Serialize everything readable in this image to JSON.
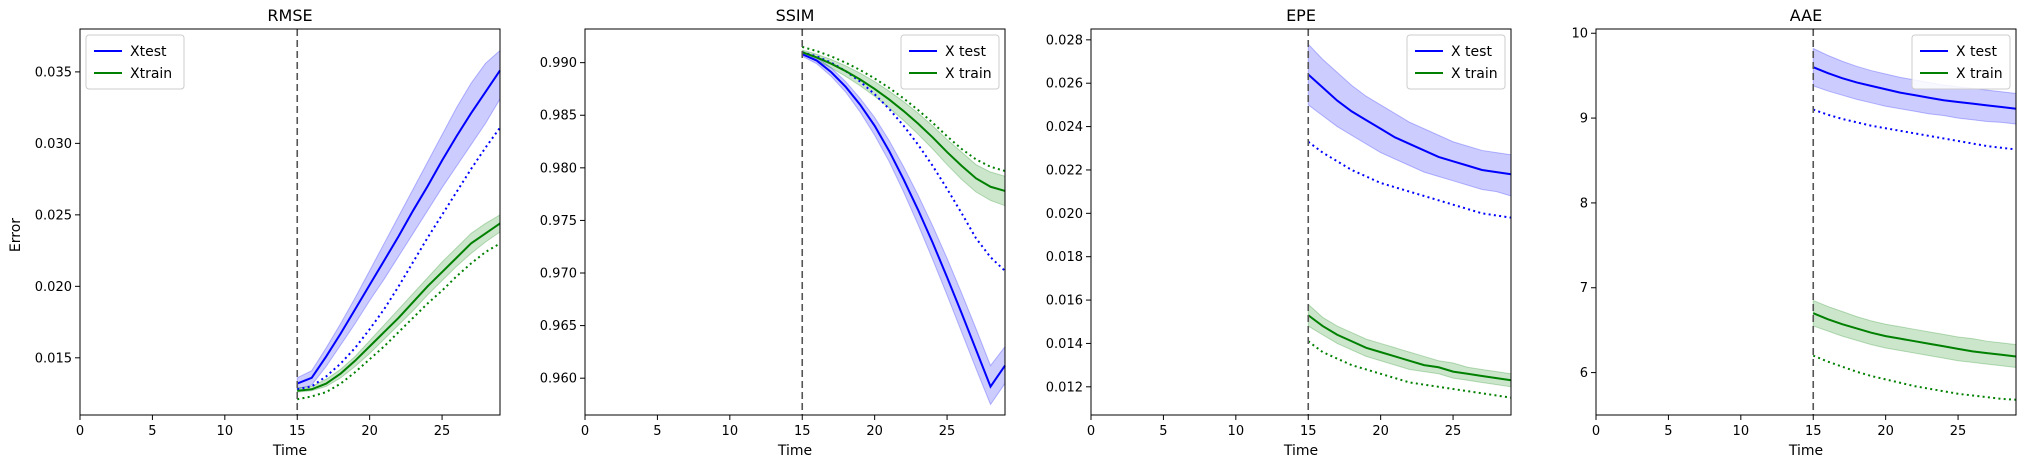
{
  "figure": {
    "ylabel": "Error"
  },
  "chart_data": [
    {
      "type": "line",
      "title": "RMSE",
      "xlabel": "Time",
      "ylabel": "Error",
      "xlim": [
        0,
        29
      ],
      "ylim": [
        0.011,
        0.038
      ],
      "xticks": [
        0,
        5,
        10,
        15,
        20,
        25
      ],
      "yticks": [
        0.015,
        0.02,
        0.025,
        0.03,
        0.035
      ],
      "ytick_labels": [
        "0.015",
        "0.020",
        "0.025",
        "0.030",
        "0.035"
      ],
      "vline": 15,
      "grid": false,
      "legend_position": "top-left",
      "x": [
        15,
        16,
        17,
        18,
        19,
        20,
        21,
        22,
        23,
        24,
        25,
        26,
        27,
        28,
        29
      ],
      "series": [
        {
          "name": "Xtest",
          "color": "#0000ff",
          "style": "solid",
          "values": [
            0.0132,
            0.0136,
            0.0151,
            0.0167,
            0.0184,
            0.0201,
            0.0218,
            0.0235,
            0.0253,
            0.027,
            0.0288,
            0.0305,
            0.0321,
            0.0336,
            0.0351
          ],
          "lower": [
            0.0128,
            0.0131,
            0.0144,
            0.0159,
            0.0174,
            0.019,
            0.0205,
            0.0221,
            0.0237,
            0.0253,
            0.0269,
            0.0284,
            0.0299,
            0.0314,
            0.0331
          ],
          "upper": [
            0.0136,
            0.0141,
            0.0157,
            0.0174,
            0.0192,
            0.0211,
            0.023,
            0.0249,
            0.0268,
            0.0287,
            0.0306,
            0.0325,
            0.0342,
            0.0356,
            0.0365
          ]
        },
        {
          "name": "",
          "color": "#0000ff",
          "style": "dotted",
          "values": [
            0.0128,
            0.013,
            0.0137,
            0.0146,
            0.0157,
            0.017,
            0.0184,
            0.02,
            0.0217,
            0.0234,
            0.025,
            0.0266,
            0.0282,
            0.0297,
            0.0311
          ]
        },
        {
          "name": "Xtrain",
          "color": "#008000",
          "style": "solid",
          "values": [
            0.0127,
            0.0128,
            0.0132,
            0.0139,
            0.0148,
            0.0158,
            0.0168,
            0.0178,
            0.0189,
            0.02,
            0.021,
            0.022,
            0.023,
            0.0237,
            0.0244
          ],
          "lower": [
            0.0126,
            0.0127,
            0.013,
            0.0136,
            0.0144,
            0.0153,
            0.0163,
            0.0173,
            0.0183,
            0.0194,
            0.0204,
            0.0214,
            0.0223,
            0.0231,
            0.0238
          ],
          "upper": [
            0.0129,
            0.013,
            0.0135,
            0.0142,
            0.0151,
            0.0162,
            0.0173,
            0.0184,
            0.0195,
            0.0206,
            0.0217,
            0.0227,
            0.0237,
            0.0244,
            0.025
          ]
        },
        {
          "name": "",
          "color": "#008000",
          "style": "dotted",
          "values": [
            0.0121,
            0.0123,
            0.0126,
            0.0132,
            0.014,
            0.0149,
            0.0158,
            0.0168,
            0.0178,
            0.0188,
            0.0197,
            0.0207,
            0.0216,
            0.0224,
            0.023
          ]
        }
      ]
    },
    {
      "type": "line",
      "title": "SSIM",
      "xlabel": "Time",
      "ylabel": "",
      "xlim": [
        0,
        29
      ],
      "ylim": [
        0.9565,
        0.9932
      ],
      "xticks": [
        0,
        5,
        10,
        15,
        20,
        25
      ],
      "yticks": [
        0.96,
        0.965,
        0.97,
        0.975,
        0.98,
        0.985,
        0.99
      ],
      "ytick_labels": [
        "0.960",
        "0.965",
        "0.970",
        "0.975",
        "0.980",
        "0.985",
        "0.990"
      ],
      "vline": 15,
      "grid": false,
      "legend_position": "top-right",
      "x": [
        15,
        16,
        17,
        18,
        19,
        20,
        21,
        22,
        23,
        24,
        25,
        26,
        27,
        28,
        29
      ],
      "series": [
        {
          "name": "X test",
          "color": "#0000ff",
          "style": "solid",
          "values": [
            0.9908,
            0.9902,
            0.9891,
            0.9877,
            0.986,
            0.984,
            0.9816,
            0.9789,
            0.976,
            0.9729,
            0.9696,
            0.9662,
            0.9627,
            0.9592,
            0.9612
          ],
          "lower": [
            0.9906,
            0.9899,
            0.9887,
            0.9872,
            0.9853,
            0.9831,
            0.9806,
            0.9777,
            0.9746,
            0.9713,
            0.9679,
            0.9644,
            0.9609,
            0.9575,
            0.9595
          ],
          "upper": [
            0.991,
            0.9905,
            0.9895,
            0.9882,
            0.9866,
            0.9848,
            0.9826,
            0.9801,
            0.9774,
            0.9745,
            0.9714,
            0.9681,
            0.9647,
            0.9612,
            0.963
          ]
        },
        {
          "name": "",
          "color": "#0000ff",
          "style": "dotted",
          "values": [
            0.991,
            0.9906,
            0.99,
            0.9892,
            0.9882,
            0.987,
            0.9856,
            0.984,
            0.9822,
            0.9802,
            0.978,
            0.9757,
            0.9733,
            0.9715,
            0.9702
          ]
        },
        {
          "name": "X train",
          "color": "#008000",
          "style": "solid",
          "values": [
            0.991,
            0.9905,
            0.9899,
            0.9892,
            0.9884,
            0.9875,
            0.9865,
            0.9854,
            0.9842,
            0.9829,
            0.9815,
            0.9802,
            0.979,
            0.9782,
            0.9778
          ],
          "lower": [
            0.9908,
            0.9902,
            0.9895,
            0.9887,
            0.9878,
            0.9868,
            0.9857,
            0.9845,
            0.9832,
            0.9818,
            0.9803,
            0.9789,
            0.9777,
            0.9769,
            0.9764
          ],
          "upper": [
            0.9912,
            0.9908,
            0.9903,
            0.9897,
            0.989,
            0.9882,
            0.9873,
            0.9863,
            0.9852,
            0.984,
            0.9827,
            0.9815,
            0.9803,
            0.9796,
            0.9792
          ]
        },
        {
          "name": "",
          "color": "#008000",
          "style": "dotted",
          "values": [
            0.9915,
            0.9911,
            0.9906,
            0.99,
            0.9893,
            0.9885,
            0.9876,
            0.9866,
            0.9855,
            0.9843,
            0.983,
            0.9818,
            0.9808,
            0.9801,
            0.9797
          ]
        }
      ]
    },
    {
      "type": "line",
      "title": "EPE",
      "xlabel": "Time",
      "ylabel": "",
      "xlim": [
        0,
        29
      ],
      "ylim": [
        0.0107,
        0.0285
      ],
      "xticks": [
        0,
        5,
        10,
        15,
        20,
        25
      ],
      "yticks": [
        0.012,
        0.014,
        0.016,
        0.018,
        0.02,
        0.022,
        0.024,
        0.026,
        0.028
      ],
      "ytick_labels": [
        "0.012",
        "0.014",
        "0.016",
        "0.018",
        "0.020",
        "0.022",
        "0.024",
        "0.026",
        "0.028"
      ],
      "vline": 15,
      "grid": false,
      "legend_position": "top-right",
      "x": [
        15,
        16,
        17,
        18,
        19,
        20,
        21,
        22,
        23,
        24,
        25,
        26,
        27,
        28,
        29
      ],
      "series": [
        {
          "name": "X test",
          "color": "#0000ff",
          "style": "solid",
          "values": [
            0.0264,
            0.0258,
            0.0252,
            0.0247,
            0.0243,
            0.0239,
            0.0235,
            0.0232,
            0.0229,
            0.0226,
            0.0224,
            0.0222,
            0.022,
            0.0219,
            0.0218
          ],
          "lower": [
            0.025,
            0.0245,
            0.024,
            0.0236,
            0.0232,
            0.0228,
            0.0225,
            0.0222,
            0.0219,
            0.0217,
            0.0215,
            0.0213,
            0.0211,
            0.021,
            0.0208
          ],
          "upper": [
            0.0278,
            0.0271,
            0.0265,
            0.0259,
            0.0254,
            0.025,
            0.0246,
            0.0242,
            0.0239,
            0.0236,
            0.0233,
            0.0231,
            0.0229,
            0.0228,
            0.0227
          ]
        },
        {
          "name": "",
          "color": "#0000ff",
          "style": "dotted",
          "values": [
            0.0233,
            0.0228,
            0.0224,
            0.022,
            0.0217,
            0.0214,
            0.0212,
            0.021,
            0.0208,
            0.0206,
            0.0204,
            0.0202,
            0.02,
            0.0199,
            0.0198
          ]
        },
        {
          "name": "X train",
          "color": "#008000",
          "style": "solid",
          "values": [
            0.0153,
            0.0148,
            0.0144,
            0.0141,
            0.0138,
            0.0136,
            0.0134,
            0.0132,
            0.013,
            0.0129,
            0.0127,
            0.0126,
            0.0125,
            0.0124,
            0.0123
          ],
          "lower": [
            0.0148,
            0.0144,
            0.014,
            0.0137,
            0.0134,
            0.0132,
            0.013,
            0.0128,
            0.0127,
            0.0126,
            0.0124,
            0.0123,
            0.0122,
            0.0121,
            0.012
          ],
          "upper": [
            0.0158,
            0.0152,
            0.0148,
            0.0145,
            0.0142,
            0.014,
            0.0138,
            0.0136,
            0.0134,
            0.0132,
            0.0131,
            0.0129,
            0.0128,
            0.0127,
            0.0126
          ]
        },
        {
          "name": "",
          "color": "#008000",
          "style": "dotted",
          "values": [
            0.0141,
            0.0136,
            0.0133,
            0.013,
            0.0128,
            0.0126,
            0.0124,
            0.0122,
            0.0121,
            0.012,
            0.0119,
            0.0118,
            0.0117,
            0.0116,
            0.0115
          ]
        }
      ]
    },
    {
      "type": "line",
      "title": "AAE",
      "xlabel": "Time",
      "ylabel": "",
      "xlim": [
        0,
        29
      ],
      "ylim": [
        5.5,
        10.05
      ],
      "xticks": [
        0,
        5,
        10,
        15,
        20,
        25
      ],
      "yticks": [
        6,
        7,
        8,
        9,
        10
      ],
      "ytick_labels": [
        "6",
        "7",
        "8",
        "9",
        "10"
      ],
      "vline": 15,
      "grid": false,
      "legend_position": "top-right",
      "x": [
        15,
        16,
        17,
        18,
        19,
        20,
        21,
        22,
        23,
        24,
        25,
        26,
        27,
        28,
        29
      ],
      "series": [
        {
          "name": "X test",
          "color": "#0000ff",
          "style": "solid",
          "values": [
            9.6,
            9.53,
            9.47,
            9.42,
            9.38,
            9.34,
            9.3,
            9.27,
            9.24,
            9.21,
            9.19,
            9.17,
            9.15,
            9.13,
            9.11
          ],
          "lower": [
            9.38,
            9.32,
            9.27,
            9.22,
            9.18,
            9.14,
            9.11,
            9.08,
            9.05,
            9.03,
            9.0,
            8.98,
            8.96,
            8.95,
            8.93
          ],
          "upper": [
            9.82,
            9.74,
            9.67,
            9.61,
            9.56,
            9.52,
            9.48,
            9.45,
            9.42,
            9.39,
            9.37,
            9.35,
            9.33,
            9.31,
            9.29
          ]
        },
        {
          "name": "",
          "color": "#0000ff",
          "style": "dotted",
          "values": [
            9.1,
            9.04,
            8.99,
            8.95,
            8.91,
            8.88,
            8.85,
            8.82,
            8.79,
            8.76,
            8.73,
            8.7,
            8.67,
            8.65,
            8.63
          ]
        },
        {
          "name": "X train",
          "color": "#008000",
          "style": "solid",
          "values": [
            6.7,
            6.63,
            6.57,
            6.52,
            6.47,
            6.43,
            6.4,
            6.37,
            6.34,
            6.31,
            6.28,
            6.25,
            6.23,
            6.21,
            6.19
          ],
          "lower": [
            6.55,
            6.49,
            6.43,
            6.38,
            6.33,
            6.29,
            6.26,
            6.23,
            6.2,
            6.17,
            6.14,
            6.12,
            6.1,
            6.08,
            6.06
          ],
          "upper": [
            6.85,
            6.78,
            6.72,
            6.66,
            6.61,
            6.57,
            6.54,
            6.51,
            6.48,
            6.45,
            6.42,
            6.4,
            6.37,
            6.35,
            6.33
          ]
        },
        {
          "name": "",
          "color": "#008000",
          "style": "dotted",
          "values": [
            6.2,
            6.13,
            6.07,
            6.01,
            5.96,
            5.92,
            5.88,
            5.84,
            5.81,
            5.78,
            5.75,
            5.73,
            5.71,
            5.69,
            5.68
          ]
        }
      ]
    }
  ]
}
